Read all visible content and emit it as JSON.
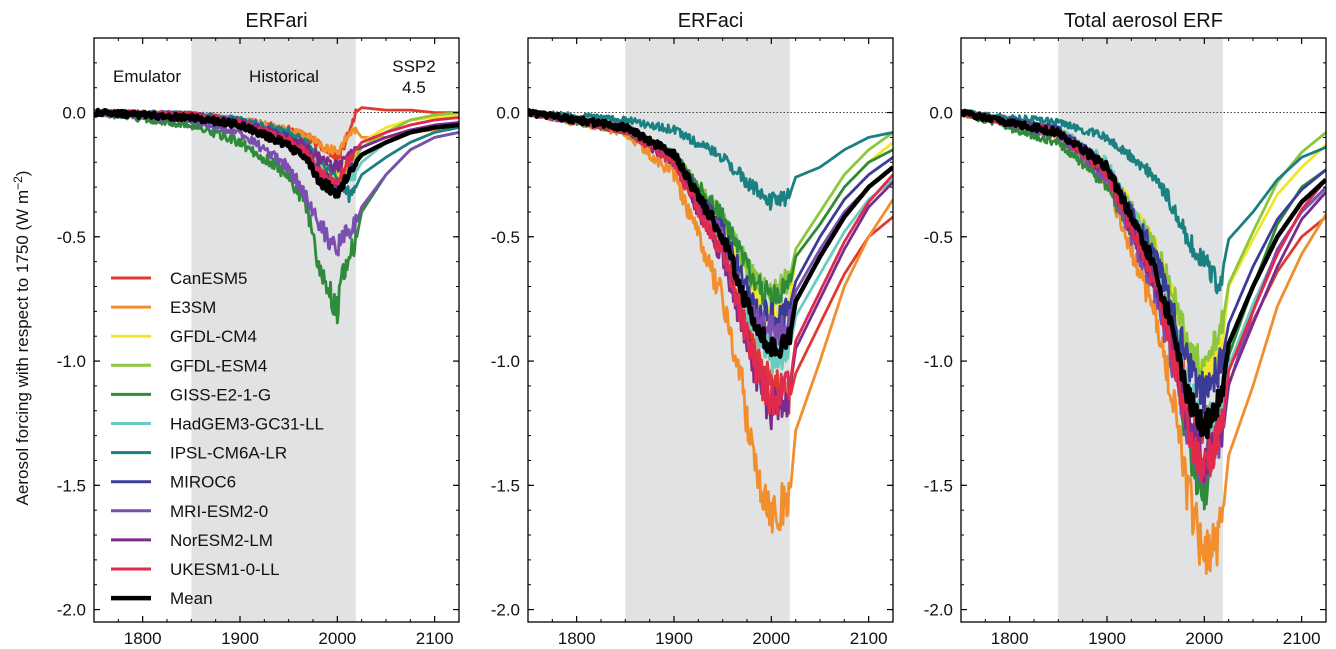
{
  "figure": {
    "ylabel": "Aerosol forcing with respect to 1750 (W m",
    "ylabel_sup": "−2",
    "ylabel_close": ")",
    "period_labels": {
      "emulator": "Emulator",
      "historical": "Historical",
      "ssp_line1": "SSP2",
      "ssp_line2": "4.5"
    }
  },
  "chart_data": [
    {
      "type": "line",
      "title": "ERFari",
      "xlim": [
        1750,
        2125
      ],
      "ylim": [
        -2.05,
        0.3
      ],
      "xticks": [
        1800,
        1900,
        2000,
        2100
      ],
      "yticks": [
        0.0,
        -0.5,
        -1.0,
        -1.5,
        -2.0
      ],
      "shaded_period": [
        1850,
        2019
      ],
      "zero_line": true,
      "legend_position": "lower-left",
      "x_key": [
        1750,
        1850,
        1900,
        1950,
        1970,
        1980,
        1990,
        2000,
        2005,
        2010,
        2015,
        2019,
        2025,
        2050,
        2075,
        2100,
        2125
      ],
      "series": [
        {
          "name": "CanESM5",
          "color": "#e03a2f",
          "values": [
            0,
            -0.01,
            -0.03,
            -0.07,
            -0.1,
            -0.13,
            -0.16,
            -0.18,
            -0.15,
            -0.1,
            -0.05,
            0.0,
            0.02,
            0.01,
            0.01,
            0.0,
            0.0
          ]
        },
        {
          "name": "E3SM",
          "color": "#f28e2b",
          "values": [
            0,
            -0.01,
            -0.03,
            -0.07,
            -0.1,
            -0.12,
            -0.15,
            -0.16,
            -0.13,
            -0.1,
            -0.08,
            -0.07,
            -0.1,
            -0.1,
            -0.08,
            -0.07,
            -0.06
          ]
        },
        {
          "name": "GFDL-CM4",
          "color": "#f2e52a",
          "values": [
            0,
            -0.02,
            -0.04,
            -0.1,
            -0.15,
            -0.2,
            -0.23,
            -0.25,
            -0.22,
            -0.2,
            -0.18,
            -0.16,
            -0.12,
            -0.06,
            -0.03,
            -0.02,
            -0.01
          ]
        },
        {
          "name": "GFDL-ESM4",
          "color": "#8cc63f",
          "values": [
            0,
            -0.02,
            -0.05,
            -0.12,
            -0.18,
            -0.23,
            -0.28,
            -0.33,
            -0.3,
            -0.25,
            -0.2,
            -0.18,
            -0.14,
            -0.08,
            -0.03,
            -0.01,
            0.0
          ]
        },
        {
          "name": "GISS-E2-1-G",
          "color": "#2e8b3a",
          "values": [
            0,
            -0.05,
            -0.12,
            -0.25,
            -0.4,
            -0.6,
            -0.7,
            -0.8,
            -0.65,
            -0.6,
            -0.55,
            -0.52,
            -0.4,
            -0.25,
            -0.15,
            -0.1,
            -0.08
          ]
        },
        {
          "name": "HadGEM3-GC31-LL",
          "color": "#6ccbc0",
          "values": [
            0,
            -0.01,
            -0.03,
            -0.09,
            -0.15,
            -0.22,
            -0.27,
            -0.3,
            -0.28,
            -0.26,
            -0.25,
            -0.24,
            -0.2,
            -0.12,
            -0.08,
            -0.05,
            -0.04
          ]
        },
        {
          "name": "IPSL-CM6A-LR",
          "color": "#1a8080",
          "values": [
            0,
            -0.01,
            -0.03,
            -0.08,
            -0.13,
            -0.18,
            -0.22,
            -0.25,
            -0.28,
            -0.32,
            -0.34,
            -0.3,
            -0.25,
            -0.18,
            -0.12,
            -0.08,
            -0.06
          ]
        },
        {
          "name": "MIROC6",
          "color": "#3b3b98",
          "values": [
            0,
            -0.01,
            -0.04,
            -0.1,
            -0.17,
            -0.22,
            -0.27,
            -0.3,
            -0.28,
            -0.25,
            -0.23,
            -0.2,
            -0.17,
            -0.12,
            -0.08,
            -0.06,
            -0.05
          ]
        },
        {
          "name": "MRI-ESM2-0",
          "color": "#7b4fb0",
          "values": [
            0,
            -0.03,
            -0.08,
            -0.22,
            -0.35,
            -0.45,
            -0.5,
            -0.55,
            -0.5,
            -0.48,
            -0.47,
            -0.45,
            -0.38,
            -0.25,
            -0.15,
            -0.1,
            -0.08
          ]
        },
        {
          "name": "NorESM2-LM",
          "color": "#7a2c8e",
          "values": [
            0,
            -0.01,
            -0.04,
            -0.1,
            -0.14,
            -0.18,
            -0.2,
            -0.22,
            -0.2,
            -0.18,
            -0.17,
            -0.15,
            -0.14,
            -0.1,
            -0.07,
            -0.05,
            -0.04
          ]
        },
        {
          "name": "UKESM1-0-LL",
          "color": "#e02a4e",
          "values": [
            0,
            -0.01,
            -0.04,
            -0.11,
            -0.17,
            -0.24,
            -0.27,
            -0.28,
            -0.24,
            -0.2,
            -0.17,
            -0.15,
            -0.12,
            -0.08,
            -0.05,
            -0.03,
            -0.02
          ]
        },
        {
          "name": "Mean",
          "color": "#000000",
          "values": [
            0,
            -0.02,
            -0.05,
            -0.13,
            -0.2,
            -0.27,
            -0.3,
            -0.32,
            -0.3,
            -0.26,
            -0.22,
            -0.2,
            -0.17,
            -0.12,
            -0.08,
            -0.06,
            -0.05
          ]
        }
      ]
    },
    {
      "type": "line",
      "title": "ERFaci",
      "xlim": [
        1750,
        2125
      ],
      "ylim": [
        -2.05,
        0.3
      ],
      "xticks": [
        1800,
        1900,
        2000,
        2100
      ],
      "yticks": [
        0.0,
        -0.5,
        -1.0,
        -1.5,
        -2.0
      ],
      "shaded_period": [
        1850,
        2019
      ],
      "zero_line": true,
      "x_key": [
        1750,
        1850,
        1900,
        1950,
        1970,
        1980,
        1990,
        2000,
        2005,
        2010,
        2015,
        2019,
        2025,
        2050,
        2075,
        2100,
        2125
      ],
      "series": [
        {
          "name": "CanESM5",
          "color": "#e03a2f",
          "values": [
            0,
            -0.07,
            -0.2,
            -0.55,
            -0.8,
            -0.95,
            -1.05,
            -1.1,
            -1.1,
            -1.12,
            -1.15,
            -1.15,
            -1.05,
            -0.85,
            -0.65,
            -0.5,
            -0.42
          ]
        },
        {
          "name": "E3SM",
          "color": "#f28e2b",
          "values": [
            0,
            -0.08,
            -0.25,
            -0.75,
            -1.1,
            -1.35,
            -1.5,
            -1.6,
            -1.58,
            -1.58,
            -1.6,
            -1.55,
            -1.28,
            -1.0,
            -0.7,
            -0.5,
            -0.35
          ]
        },
        {
          "name": "GFDL-CM4",
          "color": "#f2e52a",
          "values": [
            0,
            -0.06,
            -0.18,
            -0.45,
            -0.62,
            -0.72,
            -0.78,
            -0.82,
            -0.8,
            -0.8,
            -0.78,
            -0.75,
            -0.58,
            -0.45,
            -0.3,
            -0.2,
            -0.12
          ]
        },
        {
          "name": "GFDL-ESM4",
          "color": "#8cc63f",
          "values": [
            0,
            -0.06,
            -0.18,
            -0.42,
            -0.58,
            -0.66,
            -0.7,
            -0.72,
            -0.7,
            -0.7,
            -0.68,
            -0.66,
            -0.55,
            -0.4,
            -0.25,
            -0.15,
            -0.08
          ]
        },
        {
          "name": "GISS-E2-1-G",
          "color": "#2e8b3a",
          "values": [
            0,
            -0.07,
            -0.17,
            -0.42,
            -0.58,
            -0.66,
            -0.72,
            -0.75,
            -0.74,
            -0.73,
            -0.72,
            -0.7,
            -0.58,
            -0.45,
            -0.3,
            -0.2,
            -0.15
          ]
        },
        {
          "name": "HadGEM3-GC31-LL",
          "color": "#6ccbc0",
          "values": [
            0,
            -0.06,
            -0.17,
            -0.5,
            -0.72,
            -0.85,
            -0.92,
            -0.98,
            -0.97,
            -0.97,
            -0.96,
            -0.95,
            -0.82,
            -0.65,
            -0.48,
            -0.35,
            -0.27
          ]
        },
        {
          "name": "IPSL-CM6A-LR",
          "color": "#1a8080",
          "values": [
            0,
            -0.03,
            -0.07,
            -0.18,
            -0.26,
            -0.3,
            -0.33,
            -0.36,
            -0.35,
            -0.34,
            -0.35,
            -0.33,
            -0.26,
            -0.22,
            -0.15,
            -0.1,
            -0.08
          ]
        },
        {
          "name": "MIROC6",
          "color": "#3b3b98",
          "values": [
            0,
            -0.06,
            -0.18,
            -0.48,
            -0.66,
            -0.74,
            -0.8,
            -0.83,
            -0.82,
            -0.82,
            -0.8,
            -0.78,
            -0.68,
            -0.5,
            -0.35,
            -0.25,
            -0.18
          ]
        },
        {
          "name": "MRI-ESM2-0",
          "color": "#7b4fb0",
          "values": [
            0,
            -0.06,
            -0.18,
            -0.5,
            -0.7,
            -0.8,
            -0.86,
            -0.88,
            -0.87,
            -0.87,
            -0.86,
            -0.85,
            -0.72,
            -0.55,
            -0.4,
            -0.3,
            -0.22
          ]
        },
        {
          "name": "NorESM2-LM",
          "color": "#7a2c8e",
          "values": [
            0,
            -0.07,
            -0.2,
            -0.58,
            -0.85,
            -1.0,
            -1.1,
            -1.2,
            -1.18,
            -1.17,
            -1.15,
            -1.12,
            -0.95,
            -0.75,
            -0.55,
            -0.38,
            -0.28
          ]
        },
        {
          "name": "UKESM1-0-LL",
          "color": "#e02a4e",
          "values": [
            0,
            -0.07,
            -0.2,
            -0.57,
            -0.83,
            -0.98,
            -1.08,
            -1.15,
            -1.14,
            -1.13,
            -1.12,
            -1.1,
            -0.92,
            -0.72,
            -0.52,
            -0.36,
            -0.25
          ]
        },
        {
          "name": "Mean",
          "color": "#000000",
          "values": [
            0,
            -0.06,
            -0.17,
            -0.5,
            -0.72,
            -0.83,
            -0.9,
            -0.95,
            -0.94,
            -0.94,
            -0.93,
            -0.9,
            -0.76,
            -0.58,
            -0.42,
            -0.3,
            -0.22
          ]
        }
      ]
    },
    {
      "type": "line",
      "title": "Total aerosol ERF",
      "xlim": [
        1750,
        2125
      ],
      "ylim": [
        -2.05,
        0.3
      ],
      "xticks": [
        1800,
        1900,
        2000,
        2100
      ],
      "yticks": [
        0.0,
        -0.5,
        -1.0,
        -1.5,
        -2.0
      ],
      "shaded_period": [
        1850,
        2019
      ],
      "zero_line": true,
      "x_key": [
        1750,
        1850,
        1900,
        1950,
        1970,
        1980,
        1990,
        2000,
        2005,
        2010,
        2015,
        2019,
        2025,
        2050,
        2075,
        2100,
        2125
      ],
      "series": [
        {
          "name": "CanESM5",
          "color": "#e03a2f",
          "values": [
            0,
            -0.08,
            -0.23,
            -0.62,
            -0.9,
            -1.08,
            -1.21,
            -1.28,
            -1.25,
            -1.22,
            -1.2,
            -1.15,
            -1.03,
            -0.84,
            -0.64,
            -0.5,
            -0.42
          ]
        },
        {
          "name": "E3SM",
          "color": "#f28e2b",
          "values": [
            0,
            -0.09,
            -0.28,
            -0.82,
            -1.2,
            -1.47,
            -1.65,
            -1.82,
            -1.76,
            -1.72,
            -1.72,
            -1.62,
            -1.38,
            -1.1,
            -0.78,
            -0.57,
            -0.41
          ]
        },
        {
          "name": "GFDL-CM4",
          "color": "#f2e52a",
          "values": [
            0,
            -0.08,
            -0.22,
            -0.55,
            -0.77,
            -0.92,
            -1.01,
            -1.07,
            -1.02,
            -1.0,
            -0.96,
            -0.91,
            -0.7,
            -0.51,
            -0.33,
            -0.22,
            -0.13
          ]
        },
        {
          "name": "GFDL-ESM4",
          "color": "#8cc63f",
          "values": [
            0,
            -0.08,
            -0.23,
            -0.54,
            -0.76,
            -0.89,
            -0.98,
            -1.05,
            -1.0,
            -0.95,
            -0.88,
            -0.84,
            -0.69,
            -0.48,
            -0.28,
            -0.16,
            -0.08
          ]
        },
        {
          "name": "GISS-E2-1-G",
          "color": "#2e8b3a",
          "values": [
            0,
            -0.12,
            -0.29,
            -0.67,
            -0.98,
            -1.26,
            -1.42,
            -1.55,
            -1.39,
            -1.33,
            -1.27,
            -1.22,
            -0.98,
            -0.7,
            -0.45,
            -0.3,
            -0.23
          ]
        },
        {
          "name": "HadGEM3-GC31-LL",
          "color": "#6ccbc0",
          "values": [
            0,
            -0.07,
            -0.2,
            -0.59,
            -0.87,
            -1.07,
            -1.19,
            -1.28,
            -1.25,
            -1.23,
            -1.21,
            -1.19,
            -1.02,
            -0.77,
            -0.56,
            -0.4,
            -0.31
          ]
        },
        {
          "name": "IPSL-CM6A-LR",
          "color": "#1a8080",
          "values": [
            0,
            -0.04,
            -0.1,
            -0.26,
            -0.39,
            -0.48,
            -0.55,
            -0.61,
            -0.63,
            -0.66,
            -0.69,
            -0.63,
            -0.51,
            -0.4,
            -0.27,
            -0.18,
            -0.14
          ]
        },
        {
          "name": "MIROC6",
          "color": "#3b3b98",
          "values": [
            0,
            -0.07,
            -0.22,
            -0.58,
            -0.83,
            -0.96,
            -1.07,
            -1.13,
            -1.1,
            -1.07,
            -1.03,
            -0.98,
            -0.85,
            -0.62,
            -0.43,
            -0.31,
            -0.23
          ]
        },
        {
          "name": "MRI-ESM2-0",
          "color": "#7b4fb0",
          "values": [
            0,
            -0.09,
            -0.26,
            -0.72,
            -1.05,
            -1.25,
            -1.36,
            -1.43,
            -1.37,
            -1.35,
            -1.33,
            -1.3,
            -1.1,
            -0.8,
            -0.55,
            -0.4,
            -0.3
          ]
        },
        {
          "name": "NorESM2-LM",
          "color": "#7a2c8e",
          "values": [
            0,
            -0.08,
            -0.24,
            -0.68,
            -0.99,
            -1.18,
            -1.3,
            -1.42,
            -1.38,
            -1.35,
            -1.32,
            -1.27,
            -1.09,
            -0.85,
            -0.62,
            -0.43,
            -0.32
          ]
        },
        {
          "name": "UKESM1-0-LL",
          "color": "#e02a4e",
          "values": [
            0,
            -0.08,
            -0.24,
            -0.68,
            -1.0,
            -1.22,
            -1.35,
            -1.43,
            -1.38,
            -1.33,
            -1.29,
            -1.25,
            -1.04,
            -0.8,
            -0.57,
            -0.39,
            -0.27
          ]
        },
        {
          "name": "Mean",
          "color": "#000000",
          "values": [
            0,
            -0.08,
            -0.22,
            -0.63,
            -0.92,
            -1.1,
            -1.2,
            -1.27,
            -1.24,
            -1.2,
            -1.15,
            -1.1,
            -0.93,
            -0.7,
            -0.5,
            -0.36,
            -0.27
          ]
        }
      ]
    }
  ]
}
